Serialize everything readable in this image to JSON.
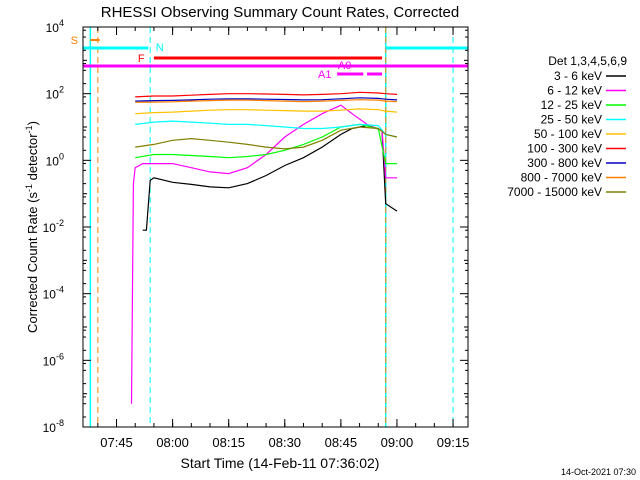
{
  "chart_data": {
    "type": "line",
    "title": "RHESSI Observing Summary Count Rates, Corrected",
    "xlabel": "Start Time (14-Feb-11 07:36:02)",
    "ylabel": "Corrected Count Rate (s",
    "ylabel_sup": "-1",
    "ylabel_mid": " detector",
    "ylabel_end": ")",
    "y_scale": "log",
    "ylim": [
      1e-08,
      10000
    ],
    "xlim": [
      "07:36:02",
      "09:19:00"
    ],
    "x_ticks": [
      "07:45",
      "08:00",
      "08:15",
      "08:30",
      "08:45",
      "09:00",
      "09:15"
    ],
    "y_ticks": [
      {
        "base": "10",
        "exp": "4"
      },
      {
        "base": "10",
        "exp": "2"
      },
      {
        "base": "10",
        "exp": "0"
      },
      {
        "base": "10",
        "exp": "-2"
      },
      {
        "base": "10",
        "exp": "-4"
      },
      {
        "base": "10",
        "exp": "-6"
      },
      {
        "base": "10",
        "exp": "-8"
      }
    ],
    "legend_title": "Det 1,3,4,5,6,9",
    "legend_placement": "right",
    "timestamp": "14-Oct-2021 07:30",
    "flag_labels": {
      "saa": "S",
      "night": "N",
      "flare": "F",
      "a0": "A0",
      "a1": "A1"
    },
    "series": [
      {
        "name": "3 - 6 keV",
        "color": "#000000",
        "x": [
          "07:52:00",
          "07:53:00",
          "07:54:00",
          "07:55:00",
          "08:00:00",
          "08:05:00",
          "08:10:00",
          "08:15:00",
          "08:20:00",
          "08:25:00",
          "08:30:00",
          "08:35:00",
          "08:40:00",
          "08:45:00",
          "08:48:00",
          "08:52:00",
          "08:56:00",
          "08:57:00",
          "09:00:00"
        ],
        "y": [
          0.008,
          0.008,
          0.25,
          0.3,
          0.22,
          0.19,
          0.16,
          0.15,
          0.2,
          0.35,
          0.7,
          1.2,
          2.5,
          6,
          9,
          11,
          8,
          0.05,
          0.03
        ]
      },
      {
        "name": "6 - 12 keV",
        "color": "#ff00ff",
        "x": [
          "07:49:00",
          "07:49:30",
          "07:50:00",
          "07:52:00",
          "07:55:00",
          "08:00:00",
          "08:05:00",
          "08:10:00",
          "08:15:00",
          "08:20:00",
          "08:25:00",
          "08:30:00",
          "08:35:00",
          "08:40:00",
          "08:45:00",
          "08:48:00",
          "08:52:00",
          "08:56:00",
          "08:57:00",
          "09:00:00"
        ],
        "y": [
          5e-08,
          0.2,
          0.6,
          0.8,
          0.8,
          0.8,
          0.6,
          0.45,
          0.4,
          0.6,
          1.5,
          5,
          12,
          25,
          45,
          25,
          12,
          8,
          0.3,
          0.3
        ]
      },
      {
        "name": "12 - 25 keV",
        "color": "#00ff00",
        "x": [
          "07:50:00",
          "07:55:00",
          "08:00:00",
          "08:05:00",
          "08:10:00",
          "08:15:00",
          "08:20:00",
          "08:25:00",
          "08:30:00",
          "08:35:00",
          "08:40:00",
          "08:45:00",
          "08:50:00",
          "08:55:00",
          "08:57:00",
          "09:00:00"
        ],
        "y": [
          1.2,
          1.5,
          1.5,
          1.4,
          1.3,
          1.2,
          1.3,
          1.5,
          2,
          3,
          5,
          10,
          12,
          9,
          0.8,
          0.8
        ]
      },
      {
        "name": "25 - 50 keV",
        "color": "#00ffff",
        "x": [
          "07:50:00",
          "07:55:00",
          "08:00:00",
          "08:05:00",
          "08:10:00",
          "08:15:00",
          "08:20:00",
          "08:25:00",
          "08:30:00",
          "08:35:00",
          "08:40:00",
          "08:45:00",
          "08:50:00",
          "08:55:00",
          "08:57:00",
          "09:00:00"
        ],
        "y": [
          12,
          14,
          15,
          14,
          13,
          12,
          12,
          11,
          10,
          9,
          9,
          10,
          12,
          11,
          6,
          5
        ]
      },
      {
        "name": "50 - 100 keV",
        "color": "#ffc000",
        "x": [
          "07:50:00",
          "07:55:00",
          "08:00:00",
          "08:05:00",
          "08:10:00",
          "08:15:00",
          "08:20:00",
          "08:25:00",
          "08:30:00",
          "08:35:00",
          "08:40:00",
          "08:45:00",
          "08:50:00",
          "08:55:00",
          "08:57:00",
          "09:00:00"
        ],
        "y": [
          25,
          27,
          28,
          30,
          32,
          33,
          33,
          32,
          31,
          30,
          30,
          32,
          35,
          33,
          30,
          28
        ]
      },
      {
        "name": "100 - 300 keV",
        "color": "#ff0000",
        "x": [
          "07:50:00",
          "07:55:00",
          "08:00:00",
          "08:05:00",
          "08:10:00",
          "08:15:00",
          "08:20:00",
          "08:25:00",
          "08:30:00",
          "08:35:00",
          "08:40:00",
          "08:45:00",
          "08:50:00",
          "08:55:00",
          "08:57:00",
          "09:00:00"
        ],
        "y": [
          80,
          85,
          85,
          90,
          95,
          100,
          100,
          98,
          95,
          92,
          95,
          100,
          110,
          105,
          100,
          95
        ]
      },
      {
        "name": "300 - 800 keV",
        "color": "#0000c0",
        "x": [
          "07:50:00",
          "07:55:00",
          "08:00:00",
          "08:05:00",
          "08:10:00",
          "08:15:00",
          "08:20:00",
          "08:25:00",
          "08:30:00",
          "08:35:00",
          "08:40:00",
          "08:45:00",
          "08:50:00",
          "08:55:00",
          "08:57:00",
          "09:00:00"
        ],
        "y": [
          60,
          62,
          63,
          65,
          68,
          70,
          70,
          68,
          67,
          65,
          66,
          70,
          75,
          72,
          68,
          65
        ]
      },
      {
        "name": "800 - 7000 keV",
        "color": "#ff8000",
        "x": [
          "07:50:00",
          "07:55:00",
          "08:00:00",
          "08:05:00",
          "08:10:00",
          "08:15:00",
          "08:20:00",
          "08:25:00",
          "08:30:00",
          "08:35:00",
          "08:40:00",
          "08:45:00",
          "08:50:00",
          "08:55:00",
          "08:57:00",
          "09:00:00"
        ],
        "y": [
          55,
          56,
          57,
          60,
          62,
          64,
          64,
          62,
          60,
          58,
          60,
          63,
          66,
          64,
          60,
          58
        ]
      },
      {
        "name": "7000 - 15000 keV",
        "color": "#808000",
        "x": [
          "07:50:00",
          "07:55:00",
          "08:00:00",
          "08:05:00",
          "08:10:00",
          "08:15:00",
          "08:20:00",
          "08:25:00",
          "08:30:00",
          "08:35:00",
          "08:40:00",
          "08:45:00",
          "08:50:00",
          "08:55:00",
          "08:57:00",
          "09:00:00"
        ],
        "y": [
          2.5,
          3,
          4,
          4.5,
          4,
          3.5,
          3,
          2.5,
          2.2,
          2.5,
          4,
          8,
          10,
          9,
          6,
          5
        ]
      }
    ]
  }
}
